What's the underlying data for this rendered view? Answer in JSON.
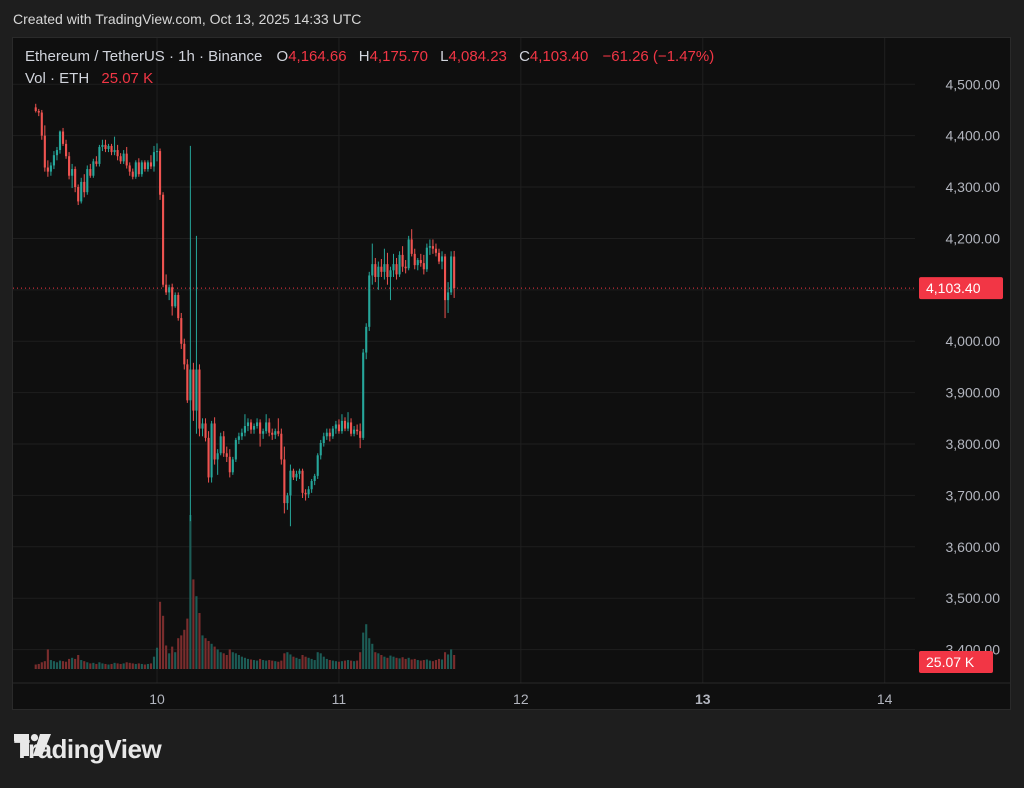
{
  "caption": "Created with TradingView.com, Oct 13, 2025 14:33 UTC",
  "brand": "TradingView",
  "header": {
    "symbol": "Ethereum / TetherUS · 1h · Binance",
    "o_label": "O",
    "o_value": "4,164.66",
    "h_label": "H",
    "h_value": "4,175.70",
    "l_label": "L",
    "l_value": "4,084.23",
    "c_label": "C",
    "c_value": "4,103.40",
    "change": "−61.26 (−1.47%)",
    "vol_label": "Vol · ETH",
    "vol_value": "25.07 K"
  },
  "colors": {
    "up": "#26a69a",
    "down": "#ef5350",
    "vol_up": "#1c5c56",
    "vol_down": "#7a2d2d",
    "price_tag": "#f23645"
  },
  "chart_data": {
    "type": "candlestick",
    "interval": "1h",
    "y_tick_labels": [
      "4,500.00",
      "4,400.00",
      "4,300.00",
      "4,200.00",
      "4,100.00",
      "4,000.00",
      "3,900.00",
      "3,800.00",
      "3,700.00",
      "3,600.00",
      "3,500.00",
      "3,400.00"
    ],
    "y_ticks": [
      4500,
      4400,
      4300,
      4200,
      4100,
      4000,
      3900,
      3800,
      3700,
      3600,
      3500,
      3400
    ],
    "ylim": [
      3335,
      4590
    ],
    "x_tick_labels": [
      "10",
      "11",
      "12",
      "13",
      "14"
    ],
    "x_ticks": [
      40,
      100,
      160,
      220,
      280
    ],
    "xlim": [
      -7.5,
      290
    ],
    "last_price": 4103.4,
    "last_price_label": "4,103.40",
    "volume_label": "25.07 K",
    "candles": [
      [
        4455,
        4462,
        4445,
        4448,
        8
      ],
      [
        4448,
        4452,
        4438,
        4445,
        9
      ],
      [
        4445,
        4450,
        4392,
        4400,
        12
      ],
      [
        4400,
        4420,
        4330,
        4338,
        14
      ],
      [
        4338,
        4352,
        4320,
        4330,
        35
      ],
      [
        4330,
        4348,
        4322,
        4342,
        16
      ],
      [
        4342,
        4370,
        4335,
        4362,
        14
      ],
      [
        4362,
        4378,
        4352,
        4372,
        12
      ],
      [
        4372,
        4410,
        4365,
        4408,
        15
      ],
      [
        4408,
        4415,
        4380,
        4384,
        14
      ],
      [
        4384,
        4392,
        4355,
        4360,
        13
      ],
      [
        4360,
        4368,
        4315,
        4322,
        18
      ],
      [
        4322,
        4345,
        4298,
        4335,
        20
      ],
      [
        4335,
        4340,
        4290,
        4300,
        18
      ],
      [
        4300,
        4305,
        4265,
        4272,
        25
      ],
      [
        4272,
        4318,
        4268,
        4310,
        16
      ],
      [
        4310,
        4325,
        4280,
        4290,
        14
      ],
      [
        4290,
        4342,
        4285,
        4335,
        12
      ],
      [
        4335,
        4345,
        4318,
        4322,
        10
      ],
      [
        4322,
        4355,
        4318,
        4350,
        11
      ],
      [
        4350,
        4360,
        4340,
        4345,
        9
      ],
      [
        4345,
        4382,
        4340,
        4378,
        12
      ],
      [
        4378,
        4392,
        4370,
        4382,
        10
      ],
      [
        4382,
        4392,
        4368,
        4374,
        9
      ],
      [
        4374,
        4384,
        4368,
        4380,
        8
      ],
      [
        4380,
        4384,
        4362,
        4368,
        9
      ],
      [
        4368,
        4398,
        4362,
        4372,
        11
      ],
      [
        4372,
        4382,
        4352,
        4360,
        10
      ],
      [
        4360,
        4366,
        4345,
        4350,
        9
      ],
      [
        4350,
        4372,
        4345,
        4365,
        10
      ],
      [
        4365,
        4378,
        4336,
        4342,
        12
      ],
      [
        4342,
        4348,
        4322,
        4330,
        11
      ],
      [
        4330,
        4336,
        4315,
        4320,
        10
      ],
      [
        4320,
        4352,
        4316,
        4348,
        9
      ],
      [
        4348,
        4356,
        4320,
        4325,
        10
      ],
      [
        4325,
        4352,
        4320,
        4348,
        9
      ],
      [
        4348,
        4352,
        4330,
        4335,
        8
      ],
      [
        4335,
        4352,
        4330,
        4348,
        9
      ],
      [
        4348,
        4362,
        4335,
        4340,
        10
      ],
      [
        4340,
        4380,
        4330,
        4368,
        22
      ],
      [
        4368,
        4385,
        4350,
        4370,
        38
      ],
      [
        4370,
        4375,
        4275,
        4285,
        120
      ],
      [
        4285,
        4290,
        4105,
        4110,
        95
      ],
      [
        4110,
        4130,
        4090,
        4095,
        42
      ],
      [
        4095,
        4110,
        4080,
        4105,
        28
      ],
      [
        4105,
        4112,
        4050,
        4068,
        40
      ],
      [
        4068,
        4095,
        4065,
        4090,
        30
      ],
      [
        4090,
        4095,
        4040,
        4045,
        55
      ],
      [
        4045,
        4055,
        3985,
        3995,
        60
      ],
      [
        3995,
        4005,
        3945,
        3955,
        70
      ],
      [
        3955,
        3965,
        3880,
        3885,
        90
      ],
      [
        3885,
        4380,
        3650,
        3945,
        275
      ],
      [
        3945,
        3958,
        3845,
        3865,
        160
      ],
      [
        3865,
        4205,
        3820,
        3945,
        130
      ],
      [
        3945,
        3955,
        3815,
        3830,
        100
      ],
      [
        3830,
        3850,
        3815,
        3840,
        60
      ],
      [
        3840,
        3850,
        3805,
        3812,
        55
      ],
      [
        3812,
        3825,
        3725,
        3735,
        50
      ],
      [
        3735,
        3845,
        3725,
        3840,
        45
      ],
      [
        3840,
        3852,
        3760,
        3770,
        40
      ],
      [
        3770,
        3790,
        3740,
        3782,
        35
      ],
      [
        3782,
        3822,
        3778,
        3815,
        30
      ],
      [
        3815,
        3825,
        3775,
        3782,
        28
      ],
      [
        3782,
        3795,
        3765,
        3775,
        25
      ],
      [
        3775,
        3790,
        3735,
        3745,
        35
      ],
      [
        3745,
        3775,
        3740,
        3770,
        30
      ],
      [
        3770,
        3812,
        3765,
        3808,
        28
      ],
      [
        3808,
        3822,
        3800,
        3815,
        25
      ],
      [
        3815,
        3830,
        3808,
        3822,
        22
      ],
      [
        3822,
        3858,
        3815,
        3835,
        20
      ],
      [
        3835,
        3850,
        3825,
        3842,
        18
      ],
      [
        3842,
        3848,
        3820,
        3828,
        17
      ],
      [
        3828,
        3840,
        3820,
        3835,
        16
      ],
      [
        3835,
        3850,
        3830,
        3842,
        15
      ],
      [
        3842,
        3848,
        3795,
        3820,
        18
      ],
      [
        3820,
        3830,
        3810,
        3825,
        16
      ],
      [
        3825,
        3858,
        3820,
        3842,
        15
      ],
      [
        3842,
        3850,
        3815,
        3822,
        16
      ],
      [
        3822,
        3830,
        3808,
        3818,
        15
      ],
      [
        3818,
        3830,
        3810,
        3825,
        14
      ],
      [
        3825,
        3850,
        3815,
        3820,
        13
      ],
      [
        3820,
        3830,
        3760,
        3770,
        15
      ],
      [
        3770,
        3795,
        3665,
        3685,
        28
      ],
      [
        3685,
        3705,
        3672,
        3700,
        30
      ],
      [
        3700,
        3760,
        3640,
        3748,
        26
      ],
      [
        3748,
        3752,
        3730,
        3735,
        22
      ],
      [
        3735,
        3748,
        3728,
        3742,
        20
      ],
      [
        3742,
        3752,
        3732,
        3748,
        18
      ],
      [
        3748,
        3752,
        3695,
        3705,
        25
      ],
      [
        3705,
        3712,
        3690,
        3702,
        22
      ],
      [
        3702,
        3718,
        3695,
        3712,
        20
      ],
      [
        3712,
        3732,
        3705,
        3728,
        18
      ],
      [
        3728,
        3742,
        3720,
        3738,
        16
      ],
      [
        3738,
        3782,
        3732,
        3778,
        30
      ],
      [
        3778,
        3808,
        3770,
        3802,
        28
      ],
      [
        3802,
        3822,
        3795,
        3815,
        22
      ],
      [
        3815,
        3830,
        3808,
        3822,
        18
      ],
      [
        3822,
        3830,
        3805,
        3815,
        16
      ],
      [
        3815,
        3835,
        3810,
        3830,
        15
      ],
      [
        3830,
        3845,
        3820,
        3838,
        14
      ],
      [
        3838,
        3848,
        3820,
        3825,
        13
      ],
      [
        3825,
        3858,
        3820,
        3845,
        14
      ],
      [
        3845,
        3852,
        3825,
        3830,
        15
      ],
      [
        3830,
        3862,
        3825,
        3842,
        16
      ],
      [
        3842,
        3850,
        3815,
        3820,
        15
      ],
      [
        3820,
        3835,
        3815,
        3828,
        14
      ],
      [
        3828,
        3838,
        3818,
        3825,
        15
      ],
      [
        3825,
        3840,
        3792,
        3812,
        30
      ],
      [
        3812,
        3985,
        3808,
        3978,
        65
      ],
      [
        3978,
        4035,
        3965,
        4028,
        80
      ],
      [
        4028,
        4135,
        4020,
        4128,
        55
      ],
      [
        4128,
        4190,
        4110,
        4150,
        45
      ],
      [
        4150,
        4162,
        4115,
        4125,
        30
      ],
      [
        4125,
        4155,
        4100,
        4145,
        28
      ],
      [
        4145,
        4160,
        4125,
        4135,
        25
      ],
      [
        4135,
        4180,
        4120,
        4150,
        22
      ],
      [
        4150,
        4172,
        4110,
        4125,
        20
      ],
      [
        4125,
        4145,
        4080,
        4138,
        24
      ],
      [
        4138,
        4170,
        4125,
        4150,
        22
      ],
      [
        4150,
        4162,
        4120,
        4130,
        20
      ],
      [
        4130,
        4175,
        4125,
        4168,
        19
      ],
      [
        4168,
        4185,
        4135,
        4145,
        21
      ],
      [
        4145,
        4158,
        4132,
        4142,
        18
      ],
      [
        4142,
        4205,
        4138,
        4198,
        20
      ],
      [
        4198,
        4218,
        4165,
        4170,
        17
      ],
      [
        4170,
        4180,
        4140,
        4148,
        18
      ],
      [
        4148,
        4162,
        4138,
        4158,
        16
      ],
      [
        4158,
        4170,
        4145,
        4152,
        15
      ],
      [
        4152,
        4168,
        4130,
        4140,
        16
      ],
      [
        4140,
        4190,
        4135,
        4182,
        17
      ],
      [
        4182,
        4198,
        4168,
        4185,
        15
      ],
      [
        4185,
        4198,
        4170,
        4180,
        14
      ],
      [
        4180,
        4190,
        4165,
        4172,
        16
      ],
      [
        4172,
        4180,
        4150,
        4155,
        18
      ],
      [
        4155,
        4175,
        4140,
        4165,
        17
      ],
      [
        4165,
        4170,
        4045,
        4080,
        30
      ],
      [
        4080,
        4115,
        4055,
        4095,
        26
      ],
      [
        4095,
        4175,
        4090,
        4165,
        35
      ],
      [
        4164.66,
        4175.7,
        4084.23,
        4103.4,
        25
      ]
    ]
  }
}
